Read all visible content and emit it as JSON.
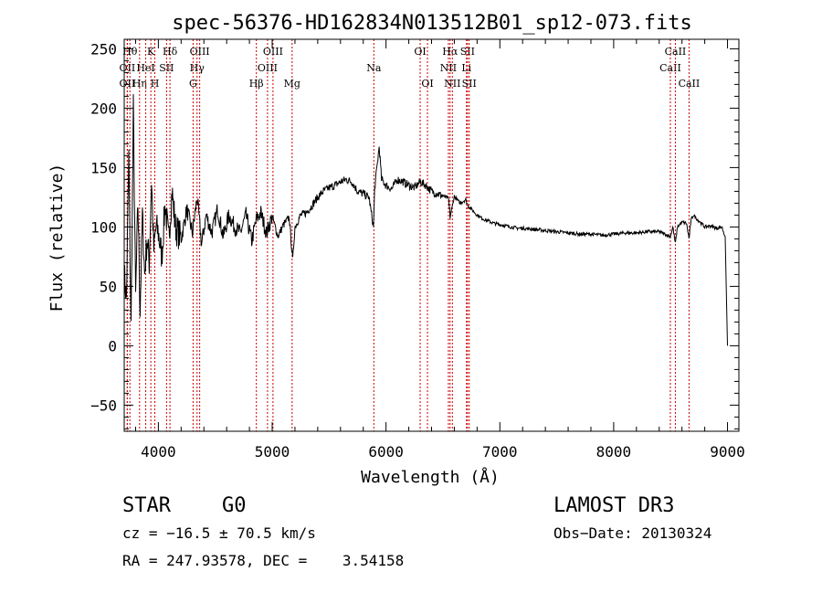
{
  "chart_data": {
    "type": "line",
    "title": "spec-56376-HD162834N013512B01_sp12-073.fits",
    "xlabel": "Wavelength (Å)",
    "ylabel": "Flux (relative)",
    "xlim": [
      3700,
      9100
    ],
    "ylim": [
      -72,
      258
    ],
    "xticks": [
      4000,
      5000,
      6000,
      7000,
      8000,
      9000
    ],
    "yticks": [
      -50,
      0,
      50,
      100,
      150,
      200,
      250
    ],
    "grid": false,
    "series": [
      {
        "name": "flux",
        "x": [
          3700,
          3720,
          3740,
          3760,
          3780,
          3800,
          3820,
          3840,
          3860,
          3880,
          3900,
          3920,
          3940,
          3960,
          3980,
          4000,
          4030,
          4060,
          4090,
          4120,
          4150,
          4200,
          4250,
          4300,
          4340,
          4380,
          4420,
          4470,
          4520,
          4570,
          4620,
          4670,
          4720,
          4770,
          4820,
          4860,
          4900,
          4950,
          5000,
          5050,
          5100,
          5150,
          5180,
          5200,
          5250,
          5300,
          5350,
          5400,
          5450,
          5500,
          5550,
          5600,
          5650,
          5700,
          5750,
          5800,
          5850,
          5890,
          5900,
          5920,
          5940,
          5960,
          6000,
          6050,
          6100,
          6150,
          6200,
          6250,
          6300,
          6350,
          6400,
          6450,
          6500,
          6550,
          6563,
          6600,
          6650,
          6700,
          6720,
          6750,
          6800,
          6850,
          6900,
          6950,
          7000,
          7050,
          7100,
          7150,
          7200,
          7300,
          7400,
          7500,
          7600,
          7700,
          7800,
          7900,
          8000,
          8100,
          8200,
          8300,
          8400,
          8498,
          8520,
          8542,
          8560,
          8600,
          8640,
          8662,
          8680,
          8700,
          8750,
          8800,
          8850,
          8900,
          8950,
          8980,
          9000
        ],
        "y": [
          60,
          40,
          160,
          15,
          200,
          40,
          120,
          30,
          110,
          60,
          90,
          70,
          140,
          80,
          100,
          95,
          75,
          120,
          88,
          130,
          100,
          90,
          115,
          95,
          125,
          85,
          110,
          95,
          115,
          92,
          110,
          100,
          95,
          110,
          88,
          106,
          112,
          95,
          109,
          92,
          102,
          108,
          72,
          100,
          110,
          112,
          118,
          125,
          130,
          133,
          135,
          138,
          140,
          138,
          130,
          128,
          125,
          100,
          132,
          150,
          168,
          140,
          135,
          132,
          140,
          138,
          135,
          133,
          138,
          135,
          130,
          128,
          126,
          124,
          108,
          126,
          120,
          123,
          118,
          115,
          110,
          107,
          105,
          103,
          102,
          101,
          100,
          99,
          99,
          98,
          97,
          96,
          95,
          94,
          94,
          93,
          94,
          95,
          95,
          96,
          96,
          92,
          100,
          86,
          100,
          104,
          103,
          90,
          106,
          110,
          105,
          100,
          101,
          99,
          100,
          92,
          0
        ]
      }
    ],
    "line_markers": [
      {
        "label": "OII",
        "wavelength": 3727,
        "row": 2
      },
      {
        "label": "Hθ",
        "wavelength": 3750,
        "row": 1
      },
      {
        "label": "OII",
        "wavelength": 3727,
        "row": 3
      },
      {
        "label": "Hη",
        "wavelength": 3835,
        "row": 3
      },
      {
        "label": "HeI",
        "wavelength": 3889,
        "row": 2
      },
      {
        "label": "K",
        "wavelength": 3934,
        "row": 1
      },
      {
        "label": "H",
        "wavelength": 3969,
        "row": 3
      },
      {
        "label": "SII",
        "wavelength": 4072,
        "row": 2
      },
      {
        "label": "Hδ",
        "wavelength": 4102,
        "row": 1
      },
      {
        "label": "G",
        "wavelength": 4305,
        "row": 3
      },
      {
        "label": "Hγ",
        "wavelength": 4340,
        "row": 2
      },
      {
        "label": "OIII",
        "wavelength": 4363,
        "row": 1
      },
      {
        "label": "Hβ",
        "wavelength": 4861,
        "row": 3
      },
      {
        "label": "OIII",
        "wavelength": 4959,
        "row": 2
      },
      {
        "label": "OIII",
        "wavelength": 5007,
        "row": 1
      },
      {
        "label": "Mg",
        "wavelength": 5175,
        "row": 3
      },
      {
        "label": "Na",
        "wavelength": 5893,
        "row": 2
      },
      {
        "label": "OI",
        "wavelength": 6300,
        "row": 1
      },
      {
        "label": "OI",
        "wavelength": 6364,
        "row": 3
      },
      {
        "label": "NII",
        "wavelength": 6548,
        "row": 2
      },
      {
        "label": "Hα",
        "wavelength": 6563,
        "row": 1
      },
      {
        "label": "NII",
        "wavelength": 6583,
        "row": 3
      },
      {
        "label": "Li",
        "wavelength": 6707,
        "row": 2
      },
      {
        "label": "SII",
        "wavelength": 6716,
        "row": 1
      },
      {
        "label": "SII",
        "wavelength": 6731,
        "row": 3
      },
      {
        "label": "CaII",
        "wavelength": 8498,
        "row": 2
      },
      {
        "label": "CaII",
        "wavelength": 8542,
        "row": 1
      },
      {
        "label": "CaII",
        "wavelength": 8662,
        "row": 3
      }
    ],
    "marker_color": "#cc0000"
  },
  "info": {
    "object_class": "STAR",
    "subclass": "G0",
    "survey": "LAMOST DR3",
    "redshift": "cz = −16.5 ± 70.5 km/s",
    "obs_date": "Obs−Date: 20130324",
    "coords": "RA = 247.93578, DEC =    3.54158"
  }
}
